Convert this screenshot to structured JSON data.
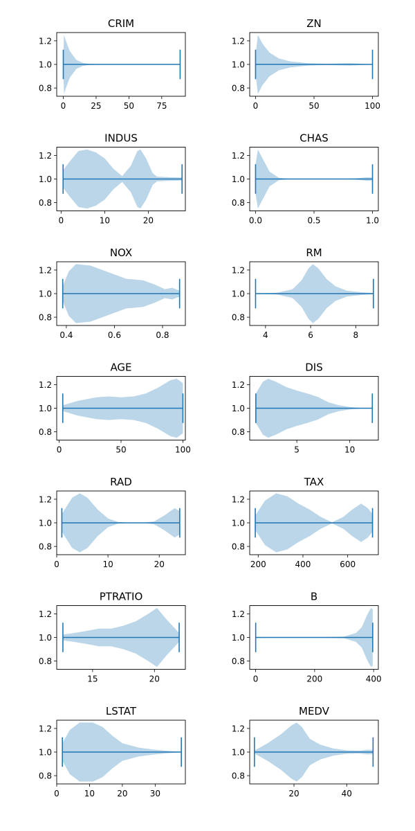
{
  "chart_data": {
    "type": "violin",
    "orientation": "horizontal",
    "colors": {
      "body": "#1f77b4",
      "body_alpha": 0.3,
      "lines": "#1f77b4"
    },
    "subplots": [
      {
        "title": "CRIM",
        "xticks": [
          0,
          25,
          50,
          75
        ],
        "yticks": [
          0.8,
          1.0,
          1.2
        ],
        "xlim": [
          -5,
          93
        ],
        "ylim": [
          0.73,
          1.27
        ],
        "min": 0.006,
        "max": 89.0,
        "density": [
          [
            0.006,
            0.1
          ],
          [
            0.5,
            1.0
          ],
          [
            2,
            0.8
          ],
          [
            5,
            0.45
          ],
          [
            10,
            0.15
          ],
          [
            15,
            0.05
          ],
          [
            20,
            0.02
          ],
          [
            30,
            0.008
          ],
          [
            50,
            0.004
          ],
          [
            75,
            0.002
          ],
          [
            89,
            0.001
          ]
        ]
      },
      {
        "title": "ZN",
        "xticks": [
          0,
          50,
          100
        ],
        "yticks": [
          0.8,
          1.0,
          1.2
        ],
        "xlim": [
          -5,
          105
        ],
        "ylim": [
          0.73,
          1.27
        ],
        "min": 0,
        "max": 100,
        "density": [
          [
            0,
            0.3
          ],
          [
            2,
            1.0
          ],
          [
            6,
            0.7
          ],
          [
            12,
            0.4
          ],
          [
            20,
            0.2
          ],
          [
            30,
            0.1
          ],
          [
            45,
            0.04
          ],
          [
            60,
            0.02
          ],
          [
            80,
            0.04
          ],
          [
            92,
            0.02
          ],
          [
            100,
            0.005
          ]
        ]
      },
      {
        "title": "INDUS",
        "xticks": [
          0,
          10,
          20
        ],
        "yticks": [
          0.8,
          1.0,
          1.2
        ],
        "xlim": [
          -1,
          28.5
        ],
        "ylim": [
          0.73,
          1.27
        ],
        "min": 0.46,
        "max": 27.74,
        "density": [
          [
            0.46,
            0.3
          ],
          [
            2,
            0.6
          ],
          [
            4,
            0.95
          ],
          [
            6,
            1.0
          ],
          [
            8,
            0.9
          ],
          [
            10,
            0.7
          ],
          [
            12,
            0.35
          ],
          [
            14,
            0.1
          ],
          [
            16,
            0.45
          ],
          [
            17.5,
            0.95
          ],
          [
            18.2,
            1.0
          ],
          [
            19.5,
            0.7
          ],
          [
            21,
            0.2
          ],
          [
            22,
            0.08
          ],
          [
            25,
            0.06
          ],
          [
            27.74,
            0.05
          ]
        ]
      },
      {
        "title": "CHAS",
        "xticks": [
          0.0,
          0.5,
          1.0
        ],
        "yticks": [
          0.8,
          1.0,
          1.2
        ],
        "xlim": [
          -0.05,
          1.05
        ],
        "ylim": [
          0.73,
          1.27
        ],
        "min": 0,
        "max": 1,
        "density": [
          [
            0,
            0.5
          ],
          [
            0.02,
            1.0
          ],
          [
            0.06,
            0.7
          ],
          [
            0.12,
            0.25
          ],
          [
            0.2,
            0.04
          ],
          [
            0.3,
            0.005
          ],
          [
            0.7,
            0.005
          ],
          [
            0.85,
            0.02
          ],
          [
            0.95,
            0.06
          ],
          [
            1.0,
            0.05
          ]
        ]
      },
      {
        "title": "NOX",
        "xticks": [
          0.4,
          0.6,
          0.8
        ],
        "yticks": [
          0.8,
          1.0,
          1.2
        ],
        "xlim": [
          0.36,
          0.895
        ],
        "ylim": [
          0.73,
          1.27
        ],
        "min": 0.385,
        "max": 0.871,
        "density": [
          [
            0.385,
            0.25
          ],
          [
            0.41,
            0.75
          ],
          [
            0.44,
            1.0
          ],
          [
            0.5,
            0.95
          ],
          [
            0.55,
            0.8
          ],
          [
            0.6,
            0.65
          ],
          [
            0.65,
            0.5
          ],
          [
            0.68,
            0.48
          ],
          [
            0.72,
            0.45
          ],
          [
            0.77,
            0.3
          ],
          [
            0.81,
            0.15
          ],
          [
            0.84,
            0.2
          ],
          [
            0.871,
            0.1
          ]
        ]
      },
      {
        "title": "RM",
        "xticks": [
          4,
          6,
          8
        ],
        "yticks": [
          0.8,
          1.0,
          1.2
        ],
        "xlim": [
          3.3,
          9.0
        ],
        "ylim": [
          0.73,
          1.27
        ],
        "min": 3.56,
        "max": 8.78,
        "density": [
          [
            3.56,
            0.01
          ],
          [
            4.5,
            0.03
          ],
          [
            5.2,
            0.15
          ],
          [
            5.6,
            0.45
          ],
          [
            5.9,
            0.85
          ],
          [
            6.1,
            1.0
          ],
          [
            6.35,
            0.85
          ],
          [
            6.7,
            0.5
          ],
          [
            7.1,
            0.25
          ],
          [
            7.6,
            0.1
          ],
          [
            8.2,
            0.05
          ],
          [
            8.78,
            0.02
          ]
        ]
      },
      {
        "title": "AGE",
        "xticks": [
          0,
          50,
          100
        ],
        "yticks": [
          0.8,
          1.0,
          1.2
        ],
        "xlim": [
          -2,
          102
        ],
        "ylim": [
          0.73,
          1.27
        ],
        "min": 2.9,
        "max": 100,
        "density": [
          [
            2.9,
            0.1
          ],
          [
            15,
            0.25
          ],
          [
            30,
            0.37
          ],
          [
            40,
            0.4
          ],
          [
            50,
            0.37
          ],
          [
            60,
            0.4
          ],
          [
            70,
            0.5
          ],
          [
            80,
            0.7
          ],
          [
            90,
            0.95
          ],
          [
            95,
            1.0
          ],
          [
            100,
            0.85
          ]
        ]
      },
      {
        "title": "DIS",
        "xticks": [
          5,
          10
        ],
        "yticks": [
          0.8,
          1.0,
          1.2
        ],
        "xlim": [
          0.55,
          12.7
        ],
        "ylim": [
          0.73,
          1.27
        ],
        "min": 1.13,
        "max": 12.13,
        "density": [
          [
            1.13,
            0.5
          ],
          [
            1.8,
            0.9
          ],
          [
            2.3,
            1.0
          ],
          [
            3,
            0.9
          ],
          [
            4,
            0.72
          ],
          [
            5,
            0.6
          ],
          [
            6,
            0.5
          ],
          [
            7,
            0.38
          ],
          [
            8,
            0.2
          ],
          [
            9,
            0.1
          ],
          [
            10,
            0.04
          ],
          [
            11,
            0.015
          ],
          [
            12.13,
            0.005
          ]
        ]
      },
      {
        "title": "RAD",
        "xticks": [
          0,
          10,
          20
        ],
        "yticks": [
          0.8,
          1.0,
          1.2
        ],
        "xlim": [
          0,
          25.1
        ],
        "ylim": [
          0.73,
          1.27
        ],
        "min": 1,
        "max": 24,
        "density": [
          [
            1,
            0.3
          ],
          [
            3,
            0.85
          ],
          [
            4.5,
            1.0
          ],
          [
            6,
            0.85
          ],
          [
            8,
            0.45
          ],
          [
            10,
            0.15
          ],
          [
            12,
            0.03
          ],
          [
            14,
            0.005
          ],
          [
            17,
            0.005
          ],
          [
            19,
            0.05
          ],
          [
            21,
            0.25
          ],
          [
            23,
            0.5
          ],
          [
            24,
            0.4
          ]
        ]
      },
      {
        "title": "TAX",
        "xticks": [
          200,
          400,
          600
        ],
        "yticks": [
          0.8,
          1.0,
          1.2
        ],
        "xlim": [
          162,
          737
        ],
        "ylim": [
          0.73,
          1.27
        ],
        "min": 187,
        "max": 711,
        "density": [
          [
            187,
            0.25
          ],
          [
            230,
            0.75
          ],
          [
            280,
            1.0
          ],
          [
            330,
            0.9
          ],
          [
            380,
            0.65
          ],
          [
            430,
            0.45
          ],
          [
            480,
            0.2
          ],
          [
            530,
            0.02
          ],
          [
            580,
            0.2
          ],
          [
            620,
            0.45
          ],
          [
            660,
            0.65
          ],
          [
            690,
            0.5
          ],
          [
            711,
            0.3
          ]
        ]
      },
      {
        "title": "PTRATIO",
        "xticks": [
          15,
          20
        ],
        "yticks": [
          0.8,
          1.0,
          1.2
        ],
        "xlim": [
          12.1,
          22.5
        ],
        "ylim": [
          0.73,
          1.27
        ],
        "min": 12.6,
        "max": 22.0,
        "density": [
          [
            12.6,
            0.1
          ],
          [
            13.5,
            0.15
          ],
          [
            14.5,
            0.22
          ],
          [
            15.5,
            0.3
          ],
          [
            16.5,
            0.3
          ],
          [
            17.5,
            0.4
          ],
          [
            18.5,
            0.55
          ],
          [
            19.5,
            0.8
          ],
          [
            20.2,
            1.0
          ],
          [
            21,
            0.6
          ],
          [
            22,
            0.15
          ]
        ]
      },
      {
        "title": "B",
        "xticks": [
          0,
          200,
          400
        ],
        "yticks": [
          0.8,
          1.0,
          1.2
        ],
        "xlim": [
          -20,
          416
        ],
        "ylim": [
          0.73,
          1.27
        ],
        "min": 0.32,
        "max": 396.9,
        "density": [
          [
            0.32,
            0.02
          ],
          [
            50,
            0.01
          ],
          [
            100,
            0.005
          ],
          [
            200,
            0.005
          ],
          [
            300,
            0.03
          ],
          [
            340,
            0.15
          ],
          [
            360,
            0.35
          ],
          [
            375,
            0.7
          ],
          [
            385,
            0.9
          ],
          [
            392,
            1.0
          ],
          [
            396.9,
            0.95
          ]
        ]
      },
      {
        "title": "LSTAT",
        "xticks": [
          0,
          10,
          20,
          30
        ],
        "yticks": [
          0.8,
          1.0,
          1.2
        ],
        "xlim": [
          0,
          39.2
        ],
        "ylim": [
          0.73,
          1.27
        ],
        "min": 1.73,
        "max": 37.97,
        "density": [
          [
            1.73,
            0.3
          ],
          [
            4,
            0.75
          ],
          [
            7,
            1.0
          ],
          [
            11,
            1.0
          ],
          [
            14,
            0.85
          ],
          [
            17,
            0.55
          ],
          [
            20,
            0.3
          ],
          [
            25,
            0.15
          ],
          [
            30,
            0.08
          ],
          [
            35,
            0.03
          ],
          [
            37.97,
            0.01
          ]
        ]
      },
      {
        "title": "MEDV",
        "xticks": [
          20,
          40
        ],
        "yticks": [
          0.8,
          1.0,
          1.2
        ],
        "xlim": [
          3.2,
          52
        ],
        "ylim": [
          0.73,
          1.27
        ],
        "min": 5,
        "max": 50,
        "density": [
          [
            5,
            0.05
          ],
          [
            10,
            0.3
          ],
          [
            15,
            0.6
          ],
          [
            19,
            0.9
          ],
          [
            21,
            1.0
          ],
          [
            23,
            0.85
          ],
          [
            26,
            0.45
          ],
          [
            30,
            0.25
          ],
          [
            35,
            0.12
          ],
          [
            40,
            0.06
          ],
          [
            45,
            0.05
          ],
          [
            48,
            0.08
          ],
          [
            50,
            0.07
          ]
        ]
      }
    ]
  }
}
